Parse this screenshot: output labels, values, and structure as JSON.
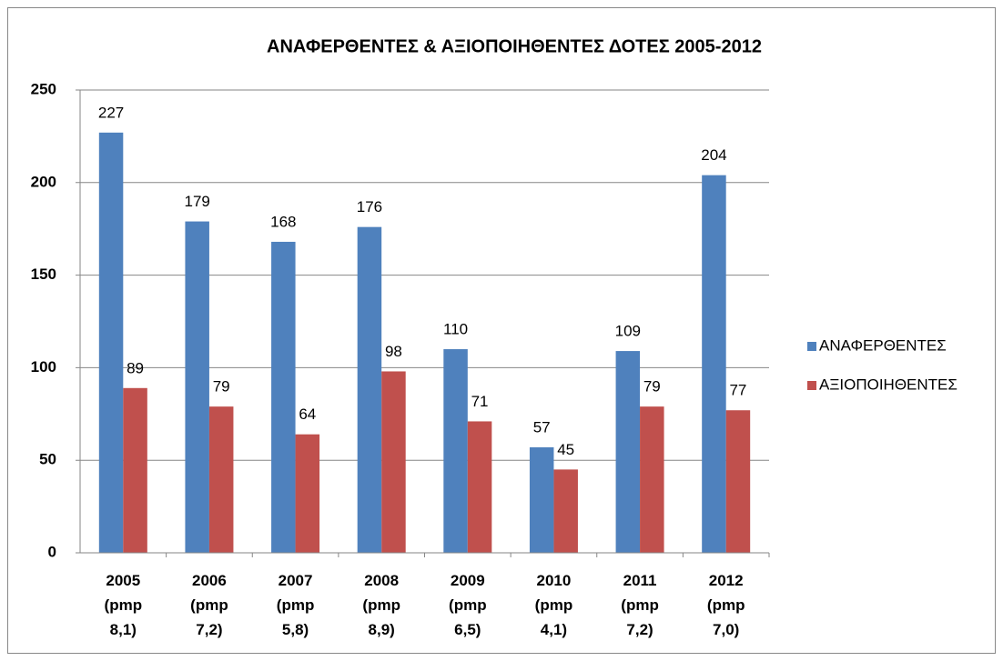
{
  "chart_data": {
    "type": "bar",
    "title": "ΑΝΑΦΕΡΘΕΝΤΕΣ & ΑΞΙΟΠΟΙΗΘΕΝΤΕΣ ΔΟΤΕΣ 2005-2012",
    "categories": [
      "2005 (pmp 8,1)",
      "2006 (pmp 7,2)",
      "2007 (pmp 5,8)",
      "2008 (pmp 8,9)",
      "2009 (pmp 6,5)",
      "2010 (pmp 4,1)",
      "2011 (pmp 7,2)",
      "2012 (pmp 7,0)"
    ],
    "series": [
      {
        "name": "ΑΝΑΦΕΡΘΕΝΤΕΣ",
        "color": "#4f81bd",
        "values": [
          227,
          179,
          168,
          176,
          110,
          57,
          109,
          204
        ]
      },
      {
        "name": "ΑΞΙΟΠΟΙΗΘΕΝΤΕΣ",
        "color": "#c0504d",
        "values": [
          89,
          79,
          64,
          98,
          71,
          45,
          79,
          77
        ]
      }
    ],
    "ylim": [
      0,
      250
    ],
    "yticks": [
      0,
      50,
      100,
      150,
      200,
      250
    ],
    "grid": true,
    "legend": "right"
  }
}
